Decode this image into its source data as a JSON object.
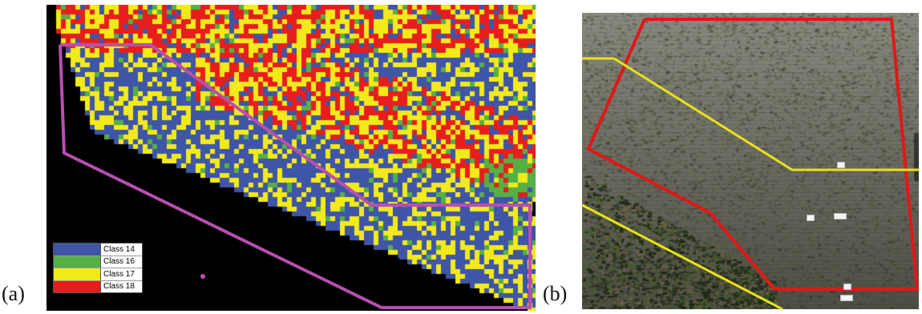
{
  "figure": {
    "panel_a_label": "(a)",
    "panel_b_label": "(b)"
  },
  "panel_a": {
    "legend": [
      {
        "label": "Class 14",
        "color": "#3f55a8"
      },
      {
        "label": "Class 16",
        "color": "#55b045"
      },
      {
        "label": "Class 17",
        "color": "#f2ea1a"
      },
      {
        "label": "Class 18",
        "color": "#e81d1d"
      }
    ],
    "outline_color": "#b84fb0",
    "background_color": "#000000"
  },
  "panel_b": {
    "outline_colors": [
      "#e01818",
      "#e8e21a"
    ]
  }
}
